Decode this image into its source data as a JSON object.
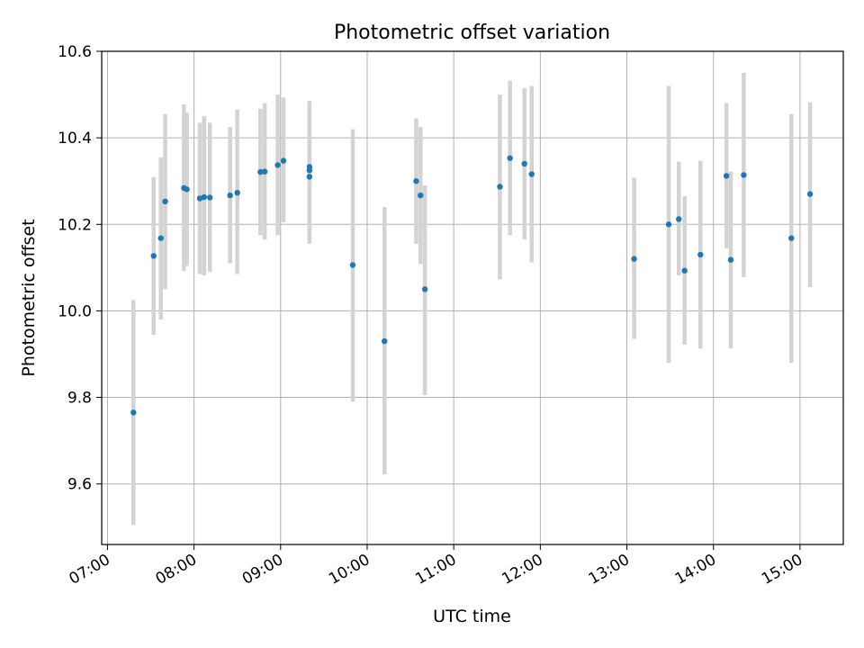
{
  "chart_data": {
    "type": "scatter",
    "title": "Photometric offset variation",
    "xlabel": "UTC time",
    "ylabel": "Photometric offset",
    "xlim": [
      "06:56",
      "15:30"
    ],
    "ylim": [
      9.46,
      10.6
    ],
    "x_ticks": [
      "07:00",
      "08:00",
      "09:00",
      "10:00",
      "11:00",
      "12:00",
      "13:00",
      "14:00",
      "15:00"
    ],
    "y_ticks": [
      "9.6",
      "9.8",
      "10.0",
      "10.2",
      "10.4",
      "10.6"
    ],
    "grid": true,
    "marker_color": "#1f77b4",
    "errorbar_color": "#d3d3d3",
    "points": [
      {
        "t": "07:18",
        "y": 9.765,
        "lo": 9.505,
        "hi": 10.025
      },
      {
        "t": "07:32",
        "y": 10.127,
        "lo": 9.945,
        "hi": 10.309
      },
      {
        "t": "07:37",
        "y": 10.168,
        "lo": 9.98,
        "hi": 10.355
      },
      {
        "t": "07:40",
        "y": 10.253,
        "lo": 10.05,
        "hi": 10.455
      },
      {
        "t": "07:53",
        "y": 10.284,
        "lo": 10.092,
        "hi": 10.477
      },
      {
        "t": "07:55",
        "y": 10.281,
        "lo": 10.104,
        "hi": 10.458
      },
      {
        "t": "08:04",
        "y": 10.26,
        "lo": 10.085,
        "hi": 10.435
      },
      {
        "t": "08:07",
        "y": 10.263,
        "lo": 10.082,
        "hi": 10.45
      },
      {
        "t": "08:11",
        "y": 10.262,
        "lo": 10.09,
        "hi": 10.435
      },
      {
        "t": "08:25",
        "y": 10.267,
        "lo": 10.11,
        "hi": 10.425
      },
      {
        "t": "08:30",
        "y": 10.273,
        "lo": 10.085,
        "hi": 10.465
      },
      {
        "t": "08:46",
        "y": 10.321,
        "lo": 10.175,
        "hi": 10.467
      },
      {
        "t": "08:49",
        "y": 10.322,
        "lo": 10.165,
        "hi": 10.48
      },
      {
        "t": "08:58",
        "y": 10.337,
        "lo": 10.175,
        "hi": 10.5
      },
      {
        "t": "09:02",
        "y": 10.347,
        "lo": 10.205,
        "hi": 10.493
      },
      {
        "t": "09:20",
        "y": 10.333,
        "lo": 10.163,
        "hi": 10.485
      },
      {
        "t": "09:20",
        "y": 10.325,
        "lo": 10.17,
        "hi": 10.48
      },
      {
        "t": "09:20",
        "y": 10.31,
        "lo": 10.155,
        "hi": 10.466
      },
      {
        "t": "09:50",
        "y": 10.106,
        "lo": 9.79,
        "hi": 10.42
      },
      {
        "t": "10:12",
        "y": 9.93,
        "lo": 9.622,
        "hi": 10.24
      },
      {
        "t": "10:34",
        "y": 10.3,
        "lo": 10.155,
        "hi": 10.445
      },
      {
        "t": "10:37",
        "y": 10.267,
        "lo": 10.108,
        "hi": 10.425
      },
      {
        "t": "10:40",
        "y": 10.05,
        "lo": 9.805,
        "hi": 10.29
      },
      {
        "t": "11:32",
        "y": 10.287,
        "lo": 10.073,
        "hi": 10.5
      },
      {
        "t": "11:39",
        "y": 10.353,
        "lo": 10.175,
        "hi": 10.532
      },
      {
        "t": "11:49",
        "y": 10.34,
        "lo": 10.165,
        "hi": 10.515
      },
      {
        "t": "11:54",
        "y": 10.316,
        "lo": 10.112,
        "hi": 10.52
      },
      {
        "t": "13:05",
        "y": 10.12,
        "lo": 9.935,
        "hi": 10.308
      },
      {
        "t": "13:29",
        "y": 10.2,
        "lo": 9.88,
        "hi": 10.52
      },
      {
        "t": "13:36",
        "y": 10.212,
        "lo": 10.082,
        "hi": 10.345
      },
      {
        "t": "13:40",
        "y": 10.093,
        "lo": 9.922,
        "hi": 10.265
      },
      {
        "t": "13:51",
        "y": 10.13,
        "lo": 9.913,
        "hi": 10.347
      },
      {
        "t": "14:09",
        "y": 10.312,
        "lo": 10.145,
        "hi": 10.48
      },
      {
        "t": "14:12",
        "y": 10.118,
        "lo": 9.913,
        "hi": 10.322
      },
      {
        "t": "14:21",
        "y": 10.314,
        "lo": 10.078,
        "hi": 10.55
      },
      {
        "t": "14:54",
        "y": 10.168,
        "lo": 9.88,
        "hi": 10.455
      },
      {
        "t": "15:07",
        "y": 10.27,
        "lo": 10.055,
        "hi": 10.482
      }
    ]
  }
}
